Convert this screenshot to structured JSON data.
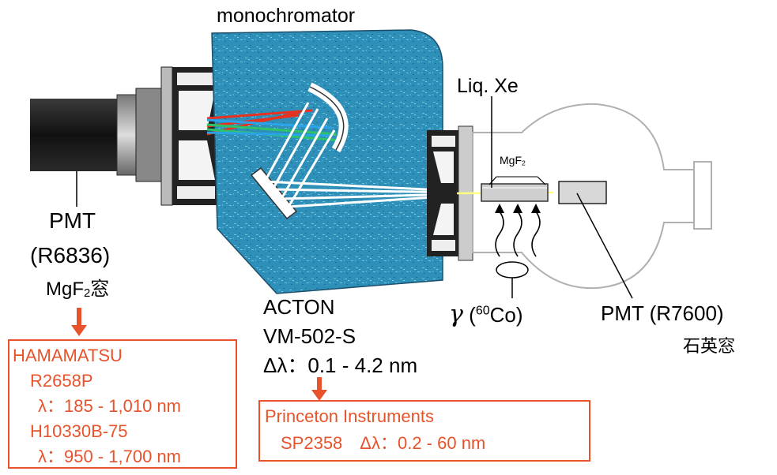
{
  "labels": {
    "monochromator": "monochromator",
    "liq_xe": "Liq. Xe",
    "mgf2_window_base": "MgF",
    "mgf2_window_sub": "2",
    "pmt_left_line1": "PMT",
    "pmt_left_line2": "(R6836)",
    "pmt_left_window_base": "MgF",
    "pmt_left_window_sub": "2",
    "pmt_left_window_suffix": "窓",
    "acton_line1": "ACTON",
    "acton_line2": "VM-502-S",
    "acton_line3": "Δλ：0.1 - 4.2 nm",
    "gamma_symbol": "γ",
    "gamma_open": "(",
    "gamma_mass": "60",
    "gamma_element": "Co)",
    "pmt_right_line1": "PMT (R7600)",
    "pmt_right_line2": "石英窓"
  },
  "hamamatsu_box": {
    "title": "HAMAMATSU",
    "model1": "R2658P",
    "range1": "λ：185 - 1,010 nm",
    "model2": "H10330B-75",
    "range2": "λ：950 - 1,700 nm"
  },
  "princeton_box": {
    "title": "Princeton Instruments",
    "spec": "SP2358　Δλ：0.2 - 60 nm"
  },
  "colors": {
    "accent_red": "#e8532b",
    "monochromator_fill": "#2e8fb8",
    "beam_red": "#e8311f",
    "beam_green": "#2ec36a",
    "beam_blue": "#2aa3e8",
    "beam_yellow": "#ffff80"
  }
}
